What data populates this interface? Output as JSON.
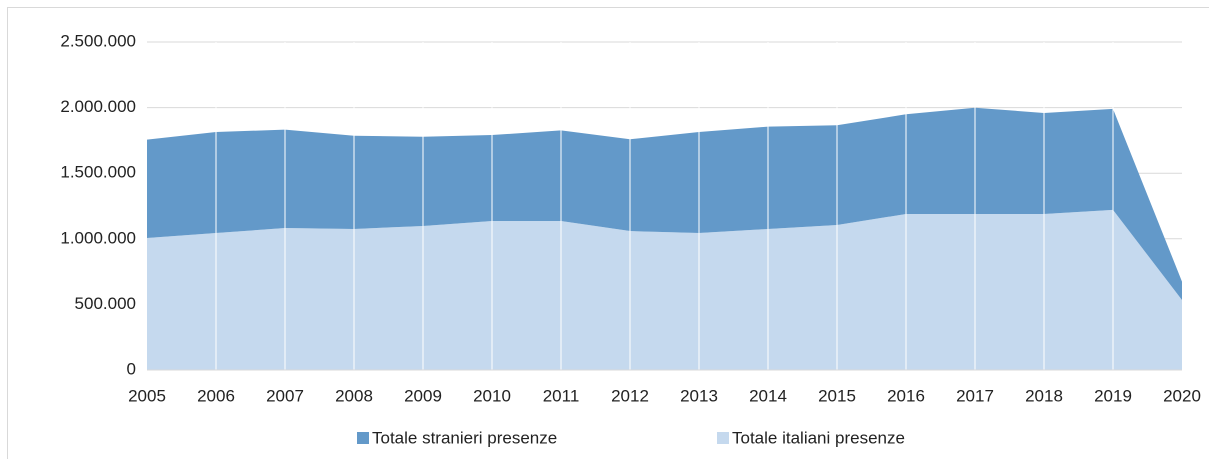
{
  "chart_data": {
    "type": "area",
    "stacked": true,
    "categories": [
      "2005",
      "2006",
      "2007",
      "2008",
      "2009",
      "2010",
      "2011",
      "2012",
      "2013",
      "2014",
      "2015",
      "2016",
      "2017",
      "2018",
      "2019",
      "2020"
    ],
    "series": [
      {
        "name": "Totale stranieri presenze",
        "color": "#6399c9",
        "values": [
          750000,
          770000,
          750000,
          710000,
          680000,
          655000,
          690000,
          700000,
          770000,
          780000,
          760000,
          760000,
          810000,
          770000,
          770000,
          140000
        ]
      },
      {
        "name": "Totale italiani presenze",
        "color": "#c5d9ee",
        "values": [
          1006000,
          1044000,
          1082000,
          1075000,
          1098000,
          1136000,
          1136000,
          1059000,
          1044000,
          1075000,
          1105000,
          1189000,
          1189000,
          1189000,
          1220000,
          534000
        ]
      }
    ],
    "ylim": [
      0,
      2500000
    ],
    "yticks": [
      0,
      {
        "value": 500000,
        "label": "500.000"
      },
      {
        "value": 1000000,
        "label": "1.000.000"
      },
      {
        "value": 1500000,
        "label": "1.500.000"
      },
      {
        "value": 2000000,
        "label": "2.000.000"
      },
      {
        "value": 2500000,
        "label": "2.500.000"
      }
    ],
    "grid": true,
    "legend": "bottom"
  }
}
